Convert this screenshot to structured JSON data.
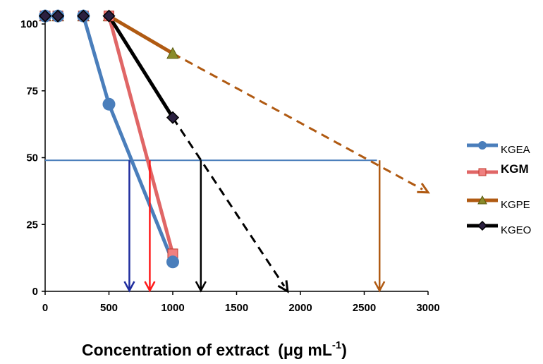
{
  "chart_data": {
    "type": "line",
    "xlabel": "Concentration of extract",
    "xlabel_unit_open": "(",
    "xlabel_unit_mu": "μ",
    "xlabel_unit_g": "g mL",
    "xlabel_unit_exp": "-1",
    "xlabel_unit_close": ")",
    "ylabel": "",
    "xlim": [
      0,
      3000
    ],
    "ylim": [
      0,
      100
    ],
    "xticks": [
      0,
      500,
      1000,
      1500,
      2000,
      2500,
      3000
    ],
    "yticks": [
      0,
      25,
      50,
      75,
      100
    ],
    "grid": false,
    "legend_position": "right",
    "series": [
      {
        "name": "KGEA",
        "color": "#4a7ebb",
        "marker": "circle",
        "x": [
          0,
          100,
          300,
          500,
          1000
        ],
        "y": [
          103,
          103,
          103,
          70,
          11
        ]
      },
      {
        "name": "KGM",
        "color": "#e06666",
        "marker": "square",
        "x": [
          0,
          100,
          300,
          500,
          1000
        ],
        "y": [
          103,
          103,
          103,
          103,
          14
        ]
      },
      {
        "name": "KGPE",
        "color": "#b05a12",
        "marker": "triangle",
        "x": [
          0,
          100,
          300,
          500,
          1000
        ],
        "y": [
          103,
          103,
          103,
          103,
          89
        ]
      },
      {
        "name": "KGEO",
        "color": "#000000",
        "marker": "diamond",
        "x": [
          0,
          100,
          300,
          500,
          1000
        ],
        "y": [
          103,
          103,
          103,
          103,
          65
        ]
      }
    ],
    "extrapolations": [
      {
        "series": "KGPE",
        "from": [
          1000,
          89
        ],
        "to": [
          3000,
          37
        ],
        "color": "#b05a12"
      },
      {
        "series": "KGEO",
        "from": [
          1000,
          65
        ],
        "to": [
          1900,
          0
        ],
        "color": "#000000"
      }
    ],
    "reference_line": {
      "y": 49,
      "x_range": [
        0,
        2600
      ],
      "color": "#4a7ebb"
    },
    "drop_arrows": [
      {
        "x": 660,
        "color": "#1f2d9e"
      },
      {
        "x": 820,
        "color": "#ff1a1a"
      },
      {
        "x": 1220,
        "color": "#000000"
      },
      {
        "x": 2620,
        "color": "#b05a12"
      }
    ],
    "legend_order": [
      "KGEA",
      "KGM",
      "KGPE",
      "KGEO"
    ]
  }
}
